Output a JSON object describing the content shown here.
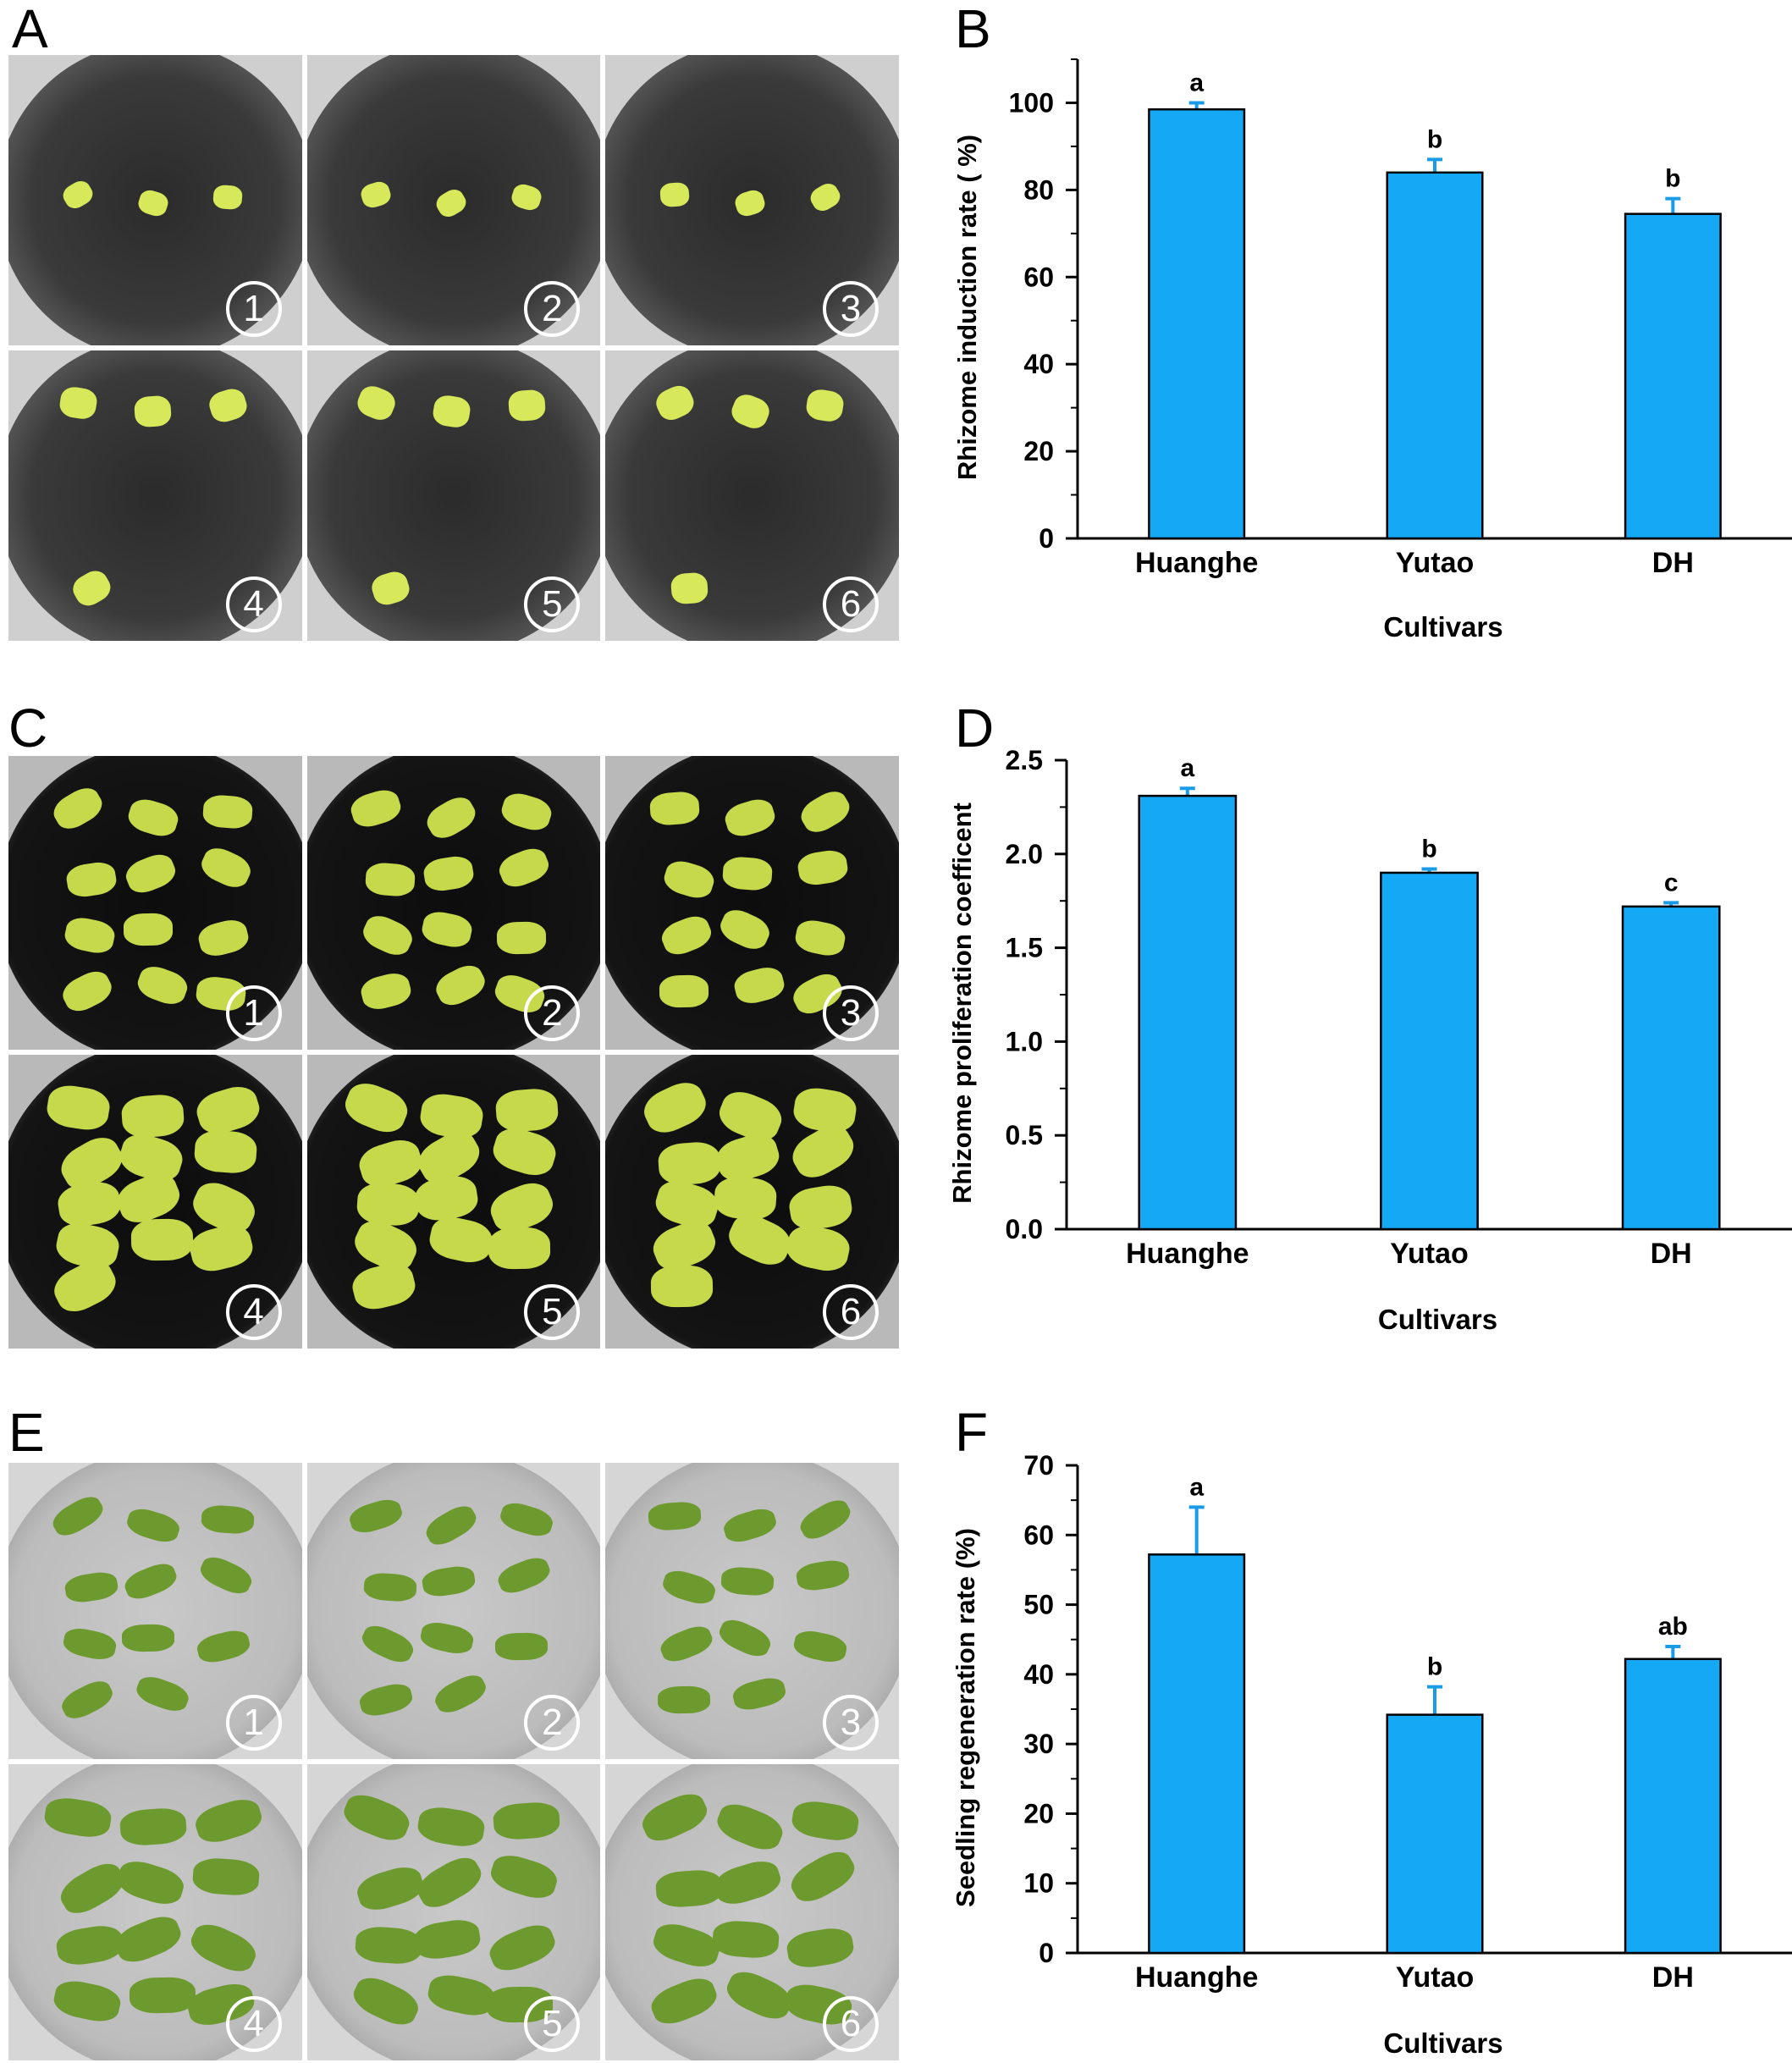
{
  "panels": {
    "photo_labels": [
      "A",
      "C",
      "E"
    ],
    "chart_labels": [
      "B",
      "D",
      "F"
    ],
    "tile_numbers": [
      "①",
      "②",
      "③",
      "④",
      "⑤",
      "⑥"
    ]
  },
  "colors": {
    "bar_fill": "#14a8f5",
    "bar_edge": "#000000",
    "error_bar": "#1a9be8",
    "axis": "#000000"
  },
  "chart_data": [
    {
      "type": "bar",
      "panel": "B",
      "title": "",
      "xlabel": "Cultivars",
      "ylabel": "Rhizome induction rate ( %)",
      "categories": [
        "Huanghe",
        "Yutao",
        "DH"
      ],
      "values": [
        98.5,
        84,
        74.5
      ],
      "errors": [
        1.5,
        3,
        3.5
      ],
      "significance": [
        "a",
        "b",
        "b"
      ],
      "ylim": [
        0,
        110
      ],
      "yticks": [
        0,
        20,
        40,
        60,
        80,
        100
      ],
      "ytick_labels": [
        "0",
        "20",
        "40",
        "60",
        "80",
        "100"
      ],
      "minor_step": 10
    },
    {
      "type": "bar",
      "panel": "D",
      "title": "",
      "xlabel": "Cultivars",
      "ylabel": "Rhizome proliferation  coefficent",
      "categories": [
        "Huanghe",
        "Yutao",
        "DH"
      ],
      "values": [
        2.31,
        1.9,
        1.72
      ],
      "errors": [
        0.04,
        0.02,
        0.02
      ],
      "significance": [
        "a",
        "b",
        "c"
      ],
      "ylim": [
        0,
        2.5
      ],
      "yticks": [
        0,
        0.5,
        1.0,
        1.5,
        2.0,
        2.5
      ],
      "ytick_labels": [
        "0.0",
        "0.5",
        "1.0",
        "1.5",
        "2.0",
        "2.5"
      ],
      "minor_step": 0.25
    },
    {
      "type": "bar",
      "panel": "F",
      "title": "",
      "xlabel": "Cultivars",
      "ylabel": "Seedling regeneration rate (%)",
      "categories": [
        "Huanghe",
        "Yutao",
        "DH"
      ],
      "values": [
        57.2,
        34.2,
        42.2
      ],
      "errors": [
        6.8,
        4,
        1.8
      ],
      "significance": [
        "a",
        "b",
        "ab"
      ],
      "ylim": [
        0,
        70
      ],
      "yticks": [
        0,
        10,
        20,
        30,
        40,
        50,
        60,
        70
      ],
      "ytick_labels": [
        "0",
        "10",
        "20",
        "30",
        "40",
        "50",
        "60",
        "70"
      ],
      "minor_step": 5
    }
  ]
}
